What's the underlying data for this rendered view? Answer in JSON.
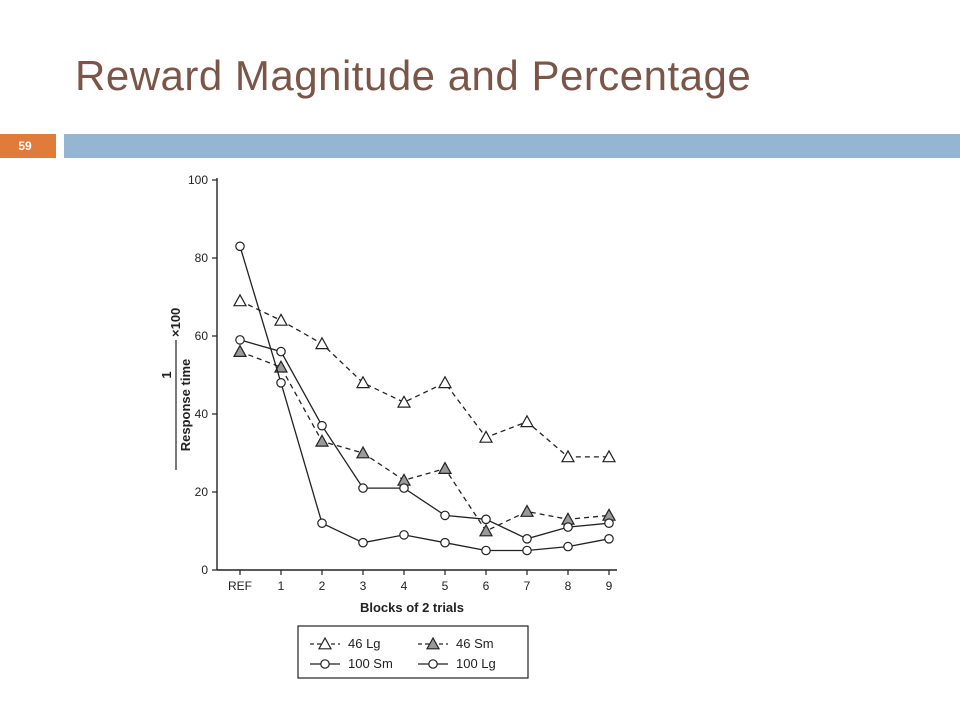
{
  "slide": {
    "title": "Reward Magnitude and Percentage",
    "number": "59"
  },
  "colors": {
    "title": "#7a5548",
    "accent_orange": "#e07b39",
    "accent_blue": "#94b6d2",
    "ink": "#222222"
  },
  "chart_data": {
    "type": "line",
    "title": "",
    "xlabel": "Blocks of 2 trials",
    "ylabel_numerator": "1",
    "ylabel_denominator": "Response time",
    "ylabel_factor": "×100",
    "categories": [
      "REF",
      "1",
      "2",
      "3",
      "4",
      "5",
      "6",
      "7",
      "8",
      "9"
    ],
    "ylim": [
      0,
      100
    ],
    "yticks": [
      0,
      20,
      40,
      60,
      80,
      100
    ],
    "grid": false,
    "legend_position": "bottom",
    "series": [
      {
        "name": "46 Lg",
        "marker": "triangle-open",
        "dash": "dashed",
        "values": [
          69,
          64,
          58,
          48,
          43,
          48,
          34,
          38,
          29,
          29
        ]
      },
      {
        "name": "46 Sm",
        "marker": "triangle-filled",
        "dash": "dashed",
        "values": [
          56,
          52,
          33,
          30,
          23,
          26,
          10,
          15,
          13,
          14
        ]
      },
      {
        "name": "100 Sm",
        "marker": "circle-open",
        "dash": "solid",
        "values": [
          59,
          56,
          37,
          21,
          21,
          14,
          13,
          8,
          11,
          12
        ]
      },
      {
        "name": "100 Lg",
        "marker": "circle-open",
        "dash": "solid",
        "values": [
          83,
          48,
          12,
          7,
          9,
          7,
          5,
          5,
          6,
          8
        ]
      }
    ]
  }
}
